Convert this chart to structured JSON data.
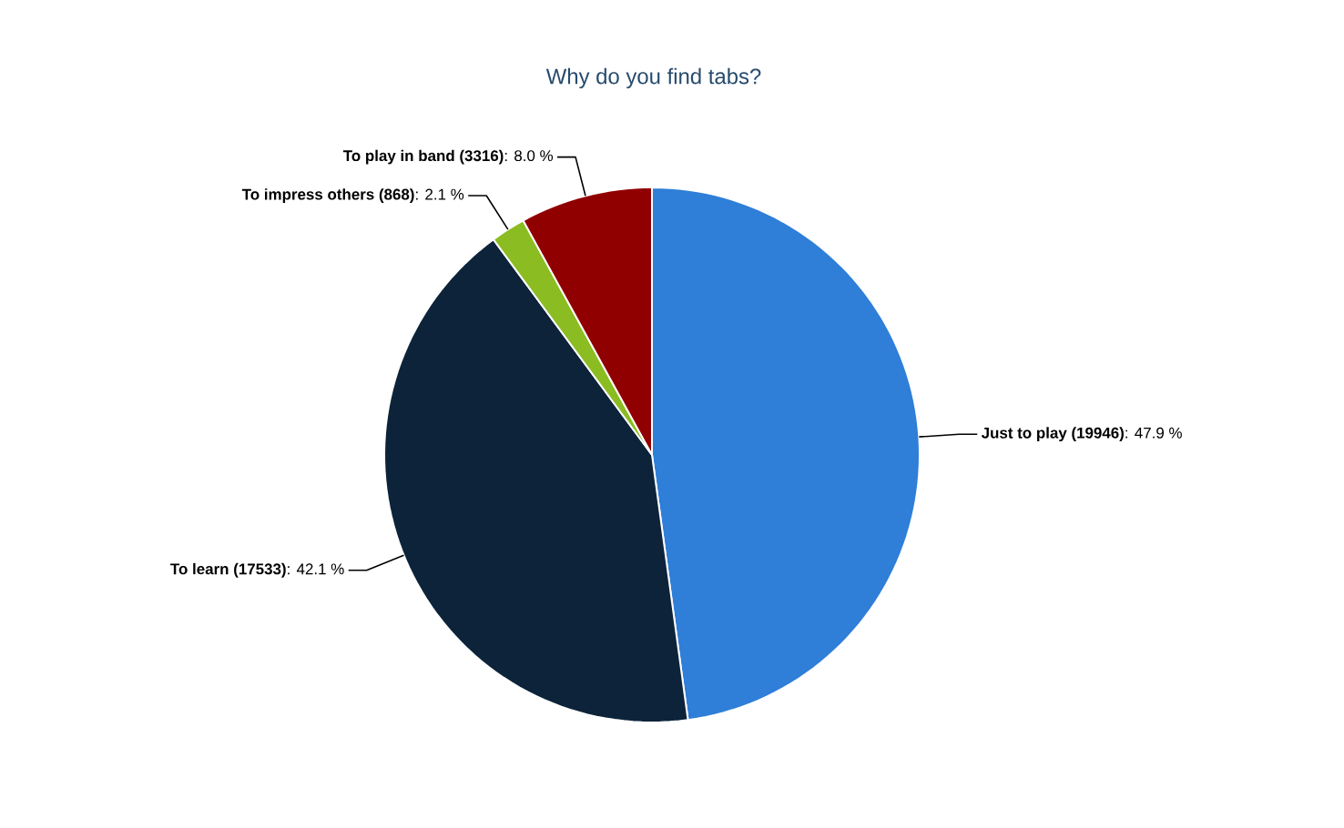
{
  "chart_data": {
    "type": "pie",
    "title": "Why do you find tabs?",
    "categories": [
      "Just to play (19946)",
      "To learn (17533)",
      "To impress others (868)",
      "To play in band (3316)"
    ],
    "values": [
      47.9,
      42.1,
      2.1,
      8.0
    ],
    "value_labels": [
      ": 47.9 %",
      ": 42.1 %",
      ": 2.1 %",
      ": 8.0 %"
    ],
    "colors": [
      "#2f7ed8",
      "#0d233a",
      "#8bbc21",
      "#910000"
    ]
  }
}
